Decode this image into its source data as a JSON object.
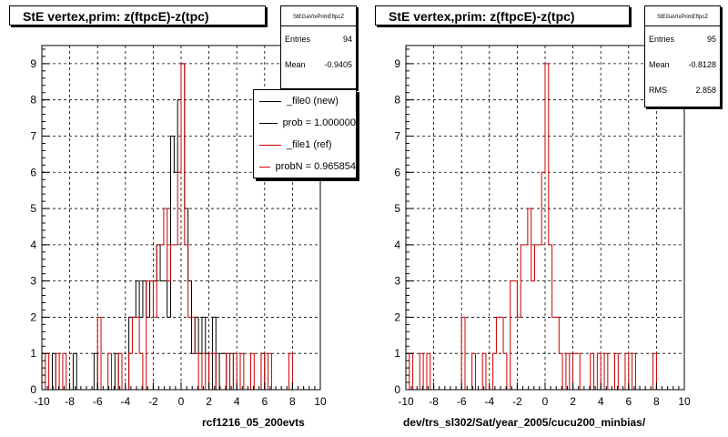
{
  "chart_data": [
    {
      "type": "histogram",
      "title": "StE  vertex,prim: z(ftpcE)-z(tpc)",
      "xlabel": "rcf1216_05_200evts",
      "xlim": [
        -10,
        10
      ],
      "ylim": [
        0,
        9.5
      ],
      "x_ticks": [
        "-10",
        "-8",
        "-6",
        "-4",
        "-2",
        "0",
        "2",
        "4",
        "6",
        "8",
        "10"
      ],
      "y_ticks": [
        "0",
        "1",
        "2",
        "3",
        "4",
        "5",
        "6",
        "7",
        "8",
        "9"
      ],
      "grid": true,
      "bin_width": 0.25,
      "stats": {
        "header": "StEGaVtxPrimEftpcZ",
        "rows": [
          {
            "label": "Entries",
            "value": "94"
          },
          {
            "label": "Mean",
            "value": "-0.9405"
          }
        ]
      },
      "legend": [
        {
          "label": "_file0 (new)",
          "color": "#000000"
        },
        {
          "label": "prob = 1.000000",
          "color": "#000000"
        },
        {
          "label": "_file1 (ref)",
          "color": "#cc0000"
        },
        {
          "label": "probN = 0.965854",
          "color": "#cc0000"
        }
      ],
      "series": [
        {
          "name": "_file0 (new)",
          "color": "#000000",
          "bins": [
            [
              -9.25,
              1
            ],
            [
              -7.75,
              1
            ],
            [
              -6.25,
              1
            ],
            [
              -4.75,
              1
            ],
            [
              -3.75,
              2
            ],
            [
              -3.5,
              2
            ],
            [
              -3.25,
              3
            ],
            [
              -3.0,
              2
            ],
            [
              -2.75,
              3
            ],
            [
              -2.5,
              2
            ],
            [
              -2.25,
              3
            ],
            [
              -2.0,
              3
            ],
            [
              -1.75,
              4
            ],
            [
              -1.5,
              3
            ],
            [
              -1.25,
              3
            ],
            [
              -1.0,
              2
            ],
            [
              -0.75,
              7
            ],
            [
              -0.5,
              6
            ],
            [
              -0.25,
              8
            ],
            [
              0.0,
              9
            ],
            [
              0.25,
              5
            ],
            [
              0.5,
              3
            ],
            [
              0.75,
              1
            ],
            [
              1.0,
              2
            ],
            [
              1.25,
              1
            ],
            [
              1.5,
              2
            ],
            [
              1.75,
              1
            ],
            [
              2.25,
              2
            ],
            [
              2.75,
              1
            ],
            [
              3.0,
              1
            ],
            [
              3.5,
              1
            ],
            [
              5.75,
              1
            ]
          ]
        },
        {
          "name": "_file1 (ref)",
          "color": "#cc0000",
          "bins": [
            [
              -9.75,
              1
            ],
            [
              -9.0,
              1
            ],
            [
              -8.5,
              1
            ],
            [
              -6.0,
              2
            ],
            [
              -5.25,
              1
            ],
            [
              -4.5,
              1
            ],
            [
              -3.75,
              1
            ],
            [
              -3.5,
              2
            ],
            [
              -3.25,
              2
            ],
            [
              -3.0,
              1
            ],
            [
              -2.5,
              3
            ],
            [
              -2.25,
              3
            ],
            [
              -2.0,
              2
            ],
            [
              -1.75,
              4
            ],
            [
              -1.5,
              4
            ],
            [
              -1.25,
              5
            ],
            [
              -1.0,
              3
            ],
            [
              -0.75,
              4
            ],
            [
              -0.5,
              4
            ],
            [
              -0.25,
              6
            ],
            [
              0.0,
              9
            ],
            [
              0.25,
              4
            ],
            [
              0.5,
              2
            ],
            [
              0.75,
              2
            ],
            [
              1.0,
              1
            ],
            [
              1.5,
              1
            ],
            [
              2.0,
              1
            ],
            [
              2.25,
              1
            ],
            [
              3.25,
              1
            ],
            [
              3.75,
              1
            ],
            [
              4.25,
              1
            ],
            [
              5.0,
              1
            ],
            [
              5.75,
              1
            ],
            [
              6.25,
              1
            ],
            [
              7.75,
              1
            ]
          ]
        }
      ]
    },
    {
      "type": "histogram",
      "title": "StE  vertex,prim: z(ftpcE)-z(tpc)",
      "xlabel": "dev/trs_sl302/Sat/year_2005/cucu200_minbias/",
      "xlim": [
        -10,
        10
      ],
      "ylim": [
        0,
        9.5
      ],
      "x_ticks": [
        "-10",
        "-8",
        "-6",
        "-4",
        "-2",
        "0",
        "2",
        "4",
        "6",
        "8",
        "10"
      ],
      "y_ticks": [
        "0",
        "1",
        "2",
        "3",
        "4",
        "5",
        "6",
        "7",
        "8",
        "9"
      ],
      "grid": true,
      "bin_width": 0.25,
      "stats": {
        "header": "StEGaVtxPrimEftpcZ",
        "rows": [
          {
            "label": "Entries",
            "value": "95"
          },
          {
            "label": "Mean",
            "value": "-0.8128"
          },
          {
            "label": "RMS",
            "value": "2.858"
          }
        ]
      },
      "series": [
        {
          "name": "",
          "color": "#cc0000",
          "bins": [
            [
              -9.75,
              1
            ],
            [
              -9.0,
              1
            ],
            [
              -8.5,
              1
            ],
            [
              -6.0,
              2
            ],
            [
              -5.25,
              1
            ],
            [
              -4.5,
              1
            ],
            [
              -3.75,
              1
            ],
            [
              -3.5,
              2
            ],
            [
              -3.25,
              2
            ],
            [
              -3.0,
              1
            ],
            [
              -2.5,
              3
            ],
            [
              -2.25,
              3
            ],
            [
              -2.0,
              2
            ],
            [
              -1.75,
              4
            ],
            [
              -1.5,
              4
            ],
            [
              -1.25,
              5
            ],
            [
              -1.0,
              3
            ],
            [
              -0.75,
              4
            ],
            [
              -0.5,
              4
            ],
            [
              -0.25,
              6
            ],
            [
              0.0,
              9
            ],
            [
              0.25,
              4
            ],
            [
              0.5,
              2
            ],
            [
              0.75,
              2
            ],
            [
              1.0,
              1
            ],
            [
              1.5,
              1
            ],
            [
              2.0,
              1
            ],
            [
              2.25,
              1
            ],
            [
              3.25,
              1
            ],
            [
              3.75,
              1
            ],
            [
              4.25,
              1
            ],
            [
              5.0,
              1
            ],
            [
              5.75,
              1
            ],
            [
              6.25,
              1
            ],
            [
              7.75,
              1
            ]
          ]
        }
      ]
    }
  ]
}
